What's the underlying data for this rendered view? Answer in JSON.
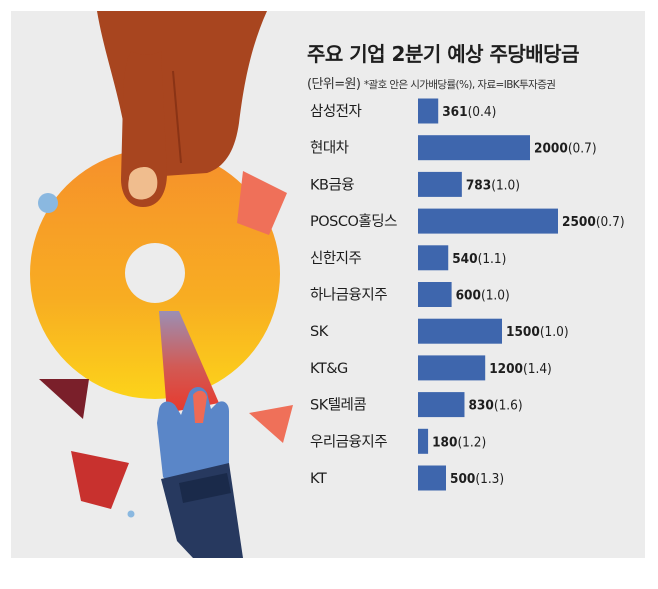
{
  "chart_data": {
    "type": "bar",
    "orientation": "horizontal",
    "title": "주요 기업 2분기 예상 주당배당금",
    "unit": "(단위=원)",
    "note": "*괄호 안은 시가배당률(%), 자료=IBK투자증권",
    "categories": [
      "삼성전자",
      "현대차",
      "KB금융",
      "POSCO홀딩스",
      "신한지주",
      "하나금융지주",
      "SK",
      "KT&G",
      "SK텔레콤",
      "우리금융지주",
      "KT"
    ],
    "series": [
      {
        "values": [
          361,
          2000,
          783,
          2500,
          540,
          600,
          1500,
          1200,
          830,
          180,
          500
        ]
      }
    ],
    "yields": [
      "(0.4)",
      "(0.7)",
      "(1.0)",
      "(0.7)",
      "(1.1)",
      "(1.0)",
      "(1.0)",
      "(1.4)",
      "(1.6)",
      "(1.2)",
      "(1.3)"
    ],
    "xlim": [
      0,
      2500
    ],
    "grid": false,
    "legend": "none",
    "bar_color": "#3e66ad"
  }
}
